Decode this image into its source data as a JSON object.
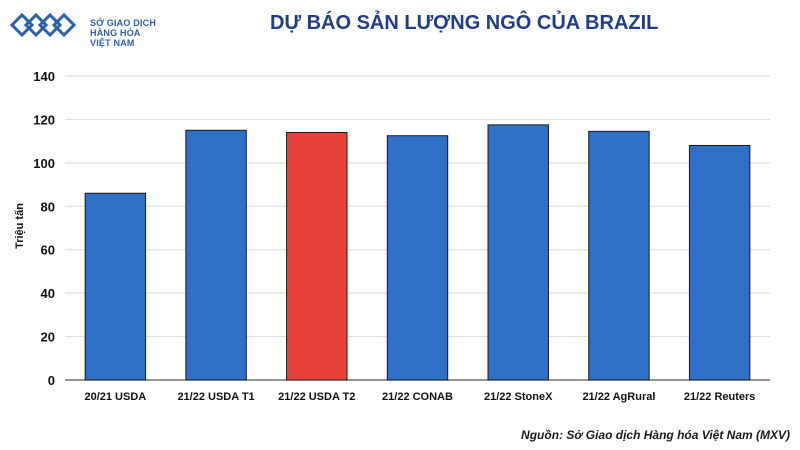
{
  "logo": {
    "line1": "SỞ GIAO DỊCH",
    "line2": "HÀNG HÓA",
    "line3": "VIỆT NAM",
    "color": "#2b5fa8"
  },
  "header": {
    "title": "DỰ BÁO SẢN LƯỢNG NGÔ CỦA BRAZIL"
  },
  "footer": {
    "source": "Nguồn: Sở Giao dịch Hàng hóa Việt Nam (MXV)"
  },
  "chart_data": {
    "type": "bar",
    "title": "DỰ BÁO SẢN LƯỢNG NGÔ CỦA BRAZIL",
    "xlabel": "",
    "ylabel": "Triệu tấn",
    "ylim": [
      0,
      140
    ],
    "yticks": [
      0,
      20,
      40,
      60,
      80,
      100,
      120,
      140
    ],
    "grid": true,
    "categories": [
      "20/21 USDA",
      "21/22 USDA T1",
      "21/22 USDA T2",
      "21/22 CONAB",
      "21/22 StoneX",
      "21/22 AgRural",
      "21/22 Reuters"
    ],
    "values": [
      86,
      115,
      114,
      112.5,
      117.5,
      114.5,
      108
    ],
    "colors": [
      "#2e6fc7",
      "#2e6fc7",
      "#e8403a",
      "#2e6fc7",
      "#2e6fc7",
      "#2e6fc7",
      "#2e6fc7"
    ]
  }
}
